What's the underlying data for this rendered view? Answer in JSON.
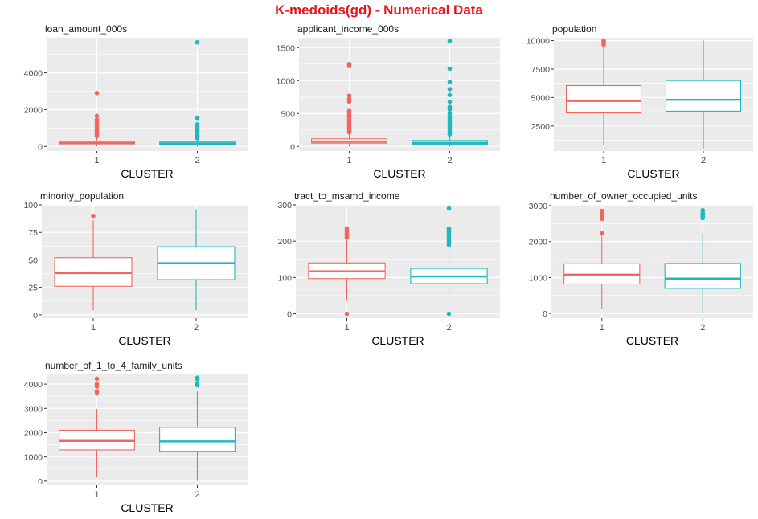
{
  "title": "K-medoids(gd) - Numerical Data",
  "colors": {
    "title": "#e8141a",
    "cluster_1": "#f0675f",
    "cluster_2": "#1fb8bd",
    "panel_bg": "#ebebeb",
    "grid": "#ffffff",
    "tick_text": "#4d4d4d"
  },
  "chart_data": [
    {
      "type": "boxplot",
      "title": "loan_amount_000s",
      "xlabel": "CLUSTER",
      "ylabel": "",
      "categories": [
        "1",
        "2"
      ],
      "ylim": [
        -250,
        5900
      ],
      "yticks": [
        0,
        2000,
        4000
      ],
      "boxes": [
        {
          "cluster": "1",
          "whisker_low": 0,
          "q1": 140,
          "median": 210,
          "q3": 290,
          "whisker_high": 520,
          "outliers": [
            560,
            650,
            750,
            850,
            950,
            1050,
            1150,
            1300,
            1450,
            1650,
            2900
          ]
        },
        {
          "cluster": "2",
          "whisker_low": 0,
          "q1": 100,
          "median": 160,
          "q3": 240,
          "whisker_high": 420,
          "outliers": [
            450,
            550,
            650,
            750,
            850,
            950,
            1050,
            1200,
            1550,
            5650
          ]
        }
      ]
    },
    {
      "type": "boxplot",
      "title": "applicant_income_000s",
      "xlabel": "CLUSTER",
      "ylabel": "",
      "categories": [
        "1",
        "2"
      ],
      "ylim": [
        -70,
        1650
      ],
      "yticks": [
        0,
        500,
        1000,
        1500
      ],
      "boxes": [
        {
          "cluster": "1",
          "whisker_low": 0,
          "q1": 50,
          "median": 75,
          "q3": 115,
          "whisker_high": 200,
          "outliers": [
            215,
            240,
            270,
            300,
            330,
            360,
            390,
            420,
            450,
            480,
            510,
            540,
            680,
            720,
            770,
            1220,
            1250
          ]
        },
        {
          "cluster": "2",
          "whisker_low": 0,
          "q1": 35,
          "median": 55,
          "q3": 90,
          "whisker_high": 170,
          "outliers": [
            185,
            210,
            240,
            270,
            300,
            330,
            360,
            390,
            420,
            450,
            500,
            560,
            600,
            680,
            780,
            870,
            980,
            1180,
            1600
          ]
        }
      ]
    },
    {
      "type": "boxplot",
      "title": "population",
      "xlabel": "CLUSTER",
      "ylabel": "",
      "categories": [
        "1",
        "2"
      ],
      "ylim": [
        300,
        10250
      ],
      "yticks": [
        2500,
        5000,
        7500,
        10000
      ],
      "boxes": [
        {
          "cluster": "1",
          "whisker_low": 850,
          "q1": 3650,
          "median": 4700,
          "q3": 6050,
          "whisker_high": 9500,
          "outliers": [
            9650,
            9800,
            9900,
            10000
          ]
        },
        {
          "cluster": "2",
          "whisker_low": 500,
          "q1": 3800,
          "median": 4800,
          "q3": 6500,
          "whisker_high": 10050,
          "outliers": []
        }
      ]
    },
    {
      "type": "boxplot",
      "title": "minority_population",
      "xlabel": "CLUSTER",
      "ylabel": "",
      "categories": [
        "1",
        "2"
      ],
      "ylim": [
        -3,
        100
      ],
      "yticks": [
        0,
        25,
        50,
        75,
        100
      ],
      "boxes": [
        {
          "cluster": "1",
          "whisker_low": 4,
          "q1": 26,
          "median": 38,
          "q3": 52,
          "whisker_high": 86,
          "outliers": [
            90
          ]
        },
        {
          "cluster": "2",
          "whisker_low": 4,
          "q1": 32,
          "median": 47,
          "q3": 62,
          "whisker_high": 96,
          "outliers": []
        }
      ]
    },
    {
      "type": "boxplot",
      "title": "tract_to_msamd_income",
      "xlabel": "CLUSTER",
      "ylabel": "",
      "categories": [
        "1",
        "2"
      ],
      "ylim": [
        -12,
        300
      ],
      "yticks": [
        0,
        100,
        200,
        300
      ],
      "boxes": [
        {
          "cluster": "1",
          "whisker_low": 35,
          "q1": 97,
          "median": 117,
          "q3": 140,
          "whisker_high": 205,
          "outliers": [
            0,
            210,
            215,
            220,
            225,
            230,
            235
          ]
        },
        {
          "cluster": "2",
          "whisker_low": 32,
          "q1": 83,
          "median": 103,
          "q3": 125,
          "whisker_high": 185,
          "outliers": [
            0,
            190,
            195,
            200,
            205,
            210,
            215,
            220,
            225,
            230,
            235,
            290
          ]
        }
      ]
    },
    {
      "type": "boxplot",
      "title": "number_of_owner_occupied_units",
      "xlabel": "CLUSTER",
      "ylabel": "",
      "categories": [
        "1",
        "2"
      ],
      "ylim": [
        -130,
        3020
      ],
      "yticks": [
        0,
        1000,
        2000,
        3000
      ],
      "boxes": [
        {
          "cluster": "1",
          "whisker_low": 130,
          "q1": 820,
          "median": 1080,
          "q3": 1380,
          "whisker_high": 2160,
          "outliers": [
            2230,
            2630,
            2700,
            2780,
            2850
          ]
        },
        {
          "cluster": "2",
          "whisker_low": 20,
          "q1": 700,
          "median": 970,
          "q3": 1390,
          "whisker_high": 2220,
          "outliers": [
            2650,
            2700,
            2750,
            2800,
            2870
          ]
        }
      ]
    },
    {
      "type": "boxplot",
      "title": "number_of_1_to_4_family_units",
      "xlabel": "CLUSTER",
      "ylabel": "",
      "categories": [
        "1",
        "2"
      ],
      "ylim": [
        -170,
        4400
      ],
      "yticks": [
        0,
        1000,
        2000,
        3000,
        4000
      ],
      "boxes": [
        {
          "cluster": "1",
          "whisker_low": 150,
          "q1": 1290,
          "median": 1660,
          "q3": 2100,
          "whisker_high": 2980,
          "outliers": [
            3620,
            3700,
            3900,
            4000,
            4220
          ]
        },
        {
          "cluster": "2",
          "whisker_low": 10,
          "q1": 1230,
          "median": 1640,
          "q3": 2220,
          "whisker_high": 3700,
          "outliers": [
            3950,
            4000,
            4200,
            4260
          ]
        }
      ]
    }
  ]
}
